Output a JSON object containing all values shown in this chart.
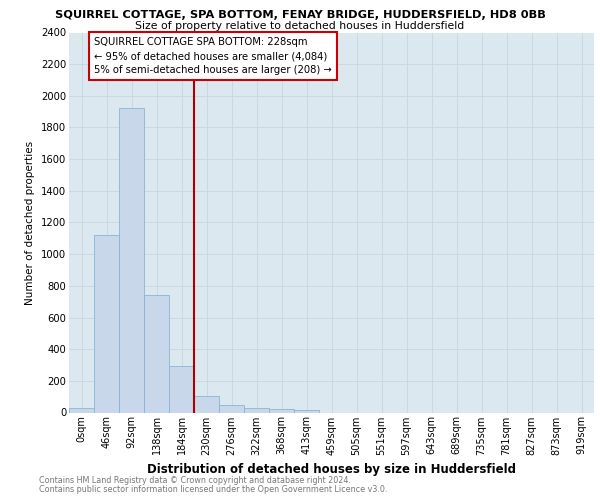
{
  "title": "SQUIRREL COTTAGE, SPA BOTTOM, FENAY BRIDGE, HUDDERSFIELD, HD8 0BB",
  "subtitle": "Size of property relative to detached houses in Huddersfield",
  "xlabel": "Distribution of detached houses by size in Huddersfield",
  "ylabel": "Number of detached properties",
  "footer1": "Contains HM Land Registry data © Crown copyright and database right 2024.",
  "footer2": "Contains public sector information licensed under the Open Government Licence v3.0.",
  "bar_labels": [
    "0sqm",
    "46sqm",
    "92sqm",
    "138sqm",
    "184sqm",
    "230sqm",
    "276sqm",
    "322sqm",
    "368sqm",
    "413sqm",
    "459sqm",
    "505sqm",
    "551sqm",
    "597sqm",
    "643sqm",
    "689sqm",
    "735sqm",
    "781sqm",
    "827sqm",
    "873sqm",
    "919sqm"
  ],
  "bar_values": [
    30,
    1120,
    1920,
    740,
    295,
    105,
    45,
    30,
    20,
    15,
    0,
    0,
    0,
    0,
    0,
    0,
    0,
    0,
    0,
    0,
    0
  ],
  "bar_color": "#c8d8ea",
  "bar_edge_color": "#8ab4d4",
  "vline_x": 5.0,
  "vline_color": "#aa0000",
  "ylim": [
    0,
    2400
  ],
  "yticks": [
    0,
    200,
    400,
    600,
    800,
    1000,
    1200,
    1400,
    1600,
    1800,
    2000,
    2200,
    2400
  ],
  "annotation_line1": "SQUIRREL COTTAGE SPA BOTTOM: 228sqm",
  "annotation_line2": "← 95% of detached houses are smaller (4,084)",
  "annotation_line3": "5% of semi-detached houses are larger (208) →",
  "annotation_box_color": "#ffffff",
  "annotation_box_edge": "#cc0000",
  "grid_color": "#c8d4e0",
  "bg_color": "#dce8f0"
}
